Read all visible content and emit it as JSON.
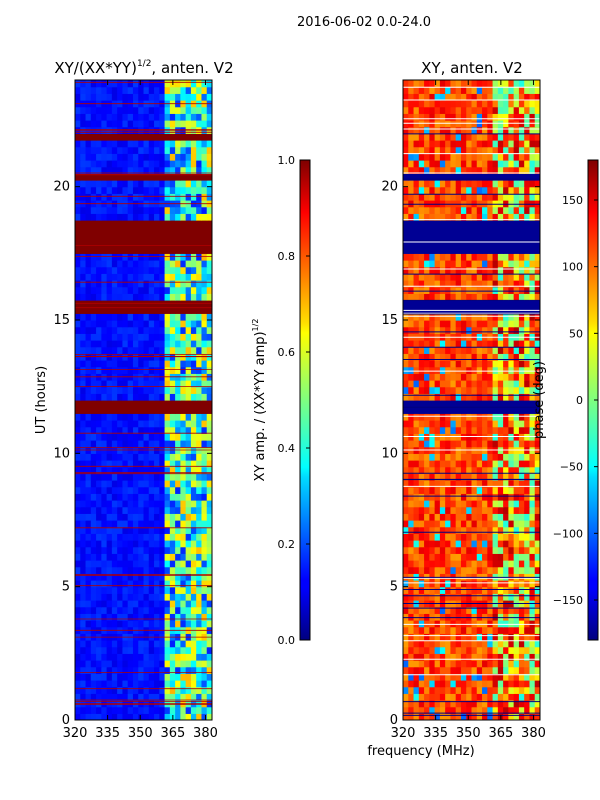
{
  "suptitle": "2016-06-02 0.0-24.0",
  "chart_data": [
    {
      "type": "heatmap",
      "title": "XY/(XX*YY)",
      "title_superscript": "1/2",
      "title_suffix": ", anten. V2",
      "ylabel": "UT (hours)",
      "xlabel": "",
      "xlim": [
        320,
        383
      ],
      "ylim": [
        0,
        24
      ],
      "x_ticks": [
        320,
        335,
        350,
        365,
        380
      ],
      "y_ticks": [
        0,
        5,
        10,
        15,
        20
      ],
      "colorbar": {
        "label": "XY amp. / (XX*YY amp)",
        "label_superscript": "1/2",
        "range": [
          0.0,
          1.0
        ],
        "ticks": [
          "0.0",
          "0.2",
          "0.4",
          "0.6",
          "0.8",
          "1.0"
        ],
        "colormap": "jet"
      },
      "saturated_bands_hours": [
        [
          11.5,
          12.0
        ],
        [
          15.3,
          15.7
        ],
        [
          17.6,
          18.7
        ],
        [
          20.2,
          20.6
        ],
        [
          21.8,
          22.1
        ]
      ],
      "high_amplitude_freq_range_mhz": [
        362,
        383
      ]
    },
    {
      "type": "heatmap",
      "title": "XY, anten. V2",
      "ylabel": "",
      "xlabel": "frequency (MHz)",
      "xlim": [
        320,
        383
      ],
      "ylim": [
        0,
        24
      ],
      "x_ticks": [
        320,
        335,
        350,
        365,
        380
      ],
      "y_ticks": [
        0,
        5,
        10,
        15,
        20
      ],
      "colorbar": {
        "label": "phase (deg)",
        "range": [
          -180,
          180
        ],
        "ticks": [
          "−150",
          "−100",
          "−50",
          "0",
          "50",
          "100",
          "150"
        ],
        "colormap": "jet"
      },
      "flagged_bands_hours": [
        [
          11.5,
          12.0
        ],
        [
          15.3,
          15.7
        ],
        [
          17.6,
          18.7
        ],
        [
          20.2,
          20.6
        ]
      ]
    }
  ]
}
